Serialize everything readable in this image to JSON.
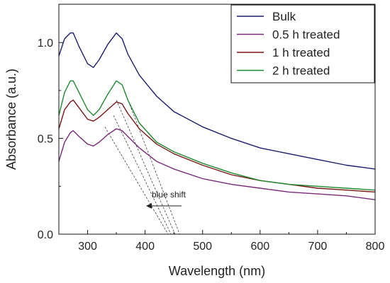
{
  "chart_data": {
    "type": "line",
    "xlabel": "Wavelength (nm)",
    "ylabel": "Absorbance (a.u.)",
    "xlim": [
      250,
      800
    ],
    "ylim": [
      0,
      1.2
    ],
    "xticks": [
      300,
      400,
      500,
      600,
      700,
      800
    ],
    "xtick_labels": [
      "300",
      "400",
      "500",
      "600",
      "700",
      "800"
    ],
    "yticks": [
      0,
      0.5,
      1.0
    ],
    "ytick_labels": [
      "0.0",
      "0.5",
      "1.0"
    ],
    "grid": false,
    "legend_position": "top-right",
    "annotation": "blue shift",
    "series": [
      {
        "name": "Bulk",
        "color": "#1c1c6e",
        "x": [
          250,
          260,
          270,
          275,
          285,
          300,
          310,
          320,
          335,
          350,
          360,
          370,
          390,
          420,
          450,
          500,
          550,
          600,
          650,
          700,
          750,
          800
        ],
        "y": [
          0.93,
          1.02,
          1.05,
          1.05,
          0.98,
          0.89,
          0.87,
          0.91,
          0.99,
          1.05,
          1.02,
          0.94,
          0.83,
          0.72,
          0.64,
          0.56,
          0.5,
          0.45,
          0.42,
          0.39,
          0.36,
          0.34
        ]
      },
      {
        "name": "0.5 h treated",
        "color": "#7a2a7a",
        "x": [
          250,
          260,
          270,
          275,
          285,
          300,
          310,
          320,
          335,
          350,
          360,
          370,
          390,
          420,
          450,
          500,
          550,
          600,
          650,
          700,
          750,
          800
        ],
        "y": [
          0.38,
          0.48,
          0.53,
          0.54,
          0.51,
          0.47,
          0.46,
          0.48,
          0.52,
          0.55,
          0.54,
          0.51,
          0.45,
          0.38,
          0.34,
          0.29,
          0.26,
          0.24,
          0.22,
          0.21,
          0.2,
          0.18
        ]
      },
      {
        "name": "1 h treated",
        "color": "#7a1616",
        "x": [
          250,
          260,
          270,
          275,
          285,
          300,
          310,
          320,
          335,
          350,
          360,
          370,
          390,
          420,
          450,
          500,
          550,
          600,
          650,
          700,
          750,
          800
        ],
        "y": [
          0.55,
          0.65,
          0.69,
          0.7,
          0.66,
          0.6,
          0.59,
          0.61,
          0.65,
          0.69,
          0.68,
          0.63,
          0.55,
          0.47,
          0.42,
          0.36,
          0.31,
          0.28,
          0.26,
          0.24,
          0.23,
          0.22
        ]
      },
      {
        "name": "2 h treated",
        "color": "#1e8a2e",
        "x": [
          250,
          260,
          270,
          275,
          285,
          300,
          310,
          320,
          335,
          350,
          360,
          370,
          390,
          420,
          450,
          500,
          550,
          600,
          650,
          700,
          750,
          800
        ],
        "y": [
          0.62,
          0.74,
          0.8,
          0.8,
          0.74,
          0.65,
          0.62,
          0.65,
          0.73,
          0.8,
          0.78,
          0.7,
          0.58,
          0.48,
          0.43,
          0.37,
          0.32,
          0.28,
          0.26,
          0.25,
          0.24,
          0.23
        ]
      }
    ],
    "tangent_lines": [
      {
        "x": [
          360,
          460
        ],
        "y": [
          0.78,
          0.0
        ]
      },
      {
        "x": [
          350,
          452
        ],
        "y": [
          0.7,
          0.0
        ]
      },
      {
        "x": [
          345,
          445
        ],
        "y": [
          0.62,
          0.0
        ]
      },
      {
        "x": [
          330,
          440
        ],
        "y": [
          0.56,
          0.0
        ]
      }
    ]
  }
}
